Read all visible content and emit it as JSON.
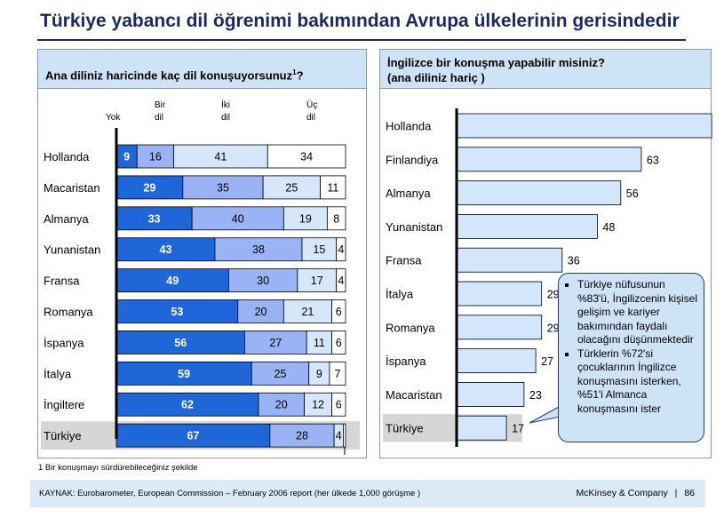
{
  "title": "Türkiye yabancı dil öğrenimi bakımından Avrupa ülkelerinin gerisindedir",
  "left_panel": {
    "title": "Ana diliniz haricinde kaç dil konuşuyorsunuz",
    "title_sup": "1",
    "title_suffix": "?",
    "col_headers": [
      {
        "line1": "",
        "line2": "Yok"
      },
      {
        "line1": "Bir",
        "line2": "dil"
      },
      {
        "line1": "İki",
        "line2": "dil"
      },
      {
        "line1": "Üç",
        "line2": "dil"
      }
    ],
    "bottom_note_label": "1"
  },
  "right_panel": {
    "title_line1": "İngilizce bir konuşma yapabilir misiniz?",
    "title_line2": "(ana diliniz hariç )"
  },
  "callout": {
    "bullets": [
      "Türkiye nüfusunun %83'ü, İngilizcenin kişisel gelişim ve kariyer bakımından faydalı olacağını düşünmektedir",
      "Türklerin %72'si çocuklarının İngilizce konuşmasını isterken, %51'i Almanca konuşmasını ister"
    ]
  },
  "footnote": "1 Bir konuşmayı sürdürebileceğiniz şekilde",
  "source": "KAYNAK: Eurobarometer, European Commission – February 2006 report (her ülkede 1,000 görüşme )",
  "brand": "McKinsey & Company",
  "page_number": "86",
  "colors": {
    "title": "#1a2a5c",
    "header_bg": "#cfe3f7",
    "seg_none": "#1f66d8",
    "seg_one": "#9ab3f5",
    "seg_two": "#d6e6fb",
    "seg_three": "#ffffff",
    "bar_right": "#d3e6fb",
    "highlight": "#d6d6d6"
  },
  "chart_data": [
    {
      "type": "bar",
      "orientation": "horizontal",
      "stacked": true,
      "percent": true,
      "title": "Ana diliniz haricinde kaç dil konuşuyorsunuz?",
      "categories": [
        "Hollanda",
        "Macaristan",
        "Almanya",
        "Yunanistan",
        "Fransa",
        "Romanya",
        "İspanya",
        "İtalya",
        "İngiltere",
        "Türkiye"
      ],
      "series": [
        {
          "name": "Yok",
          "values": [
            9,
            29,
            33,
            43,
            49,
            53,
            56,
            59,
            62,
            67
          ]
        },
        {
          "name": "Bir dil",
          "values": [
            16,
            35,
            40,
            38,
            30,
            20,
            27,
            25,
            20,
            28
          ]
        },
        {
          "name": "İki dil",
          "values": [
            41,
            25,
            19,
            15,
            17,
            21,
            11,
            9,
            12,
            4
          ]
        },
        {
          "name": "Üç dil",
          "values": [
            34,
            11,
            8,
            4,
            4,
            6,
            6,
            7,
            6,
            1
          ]
        }
      ],
      "highlight": "Türkiye",
      "legend": "top"
    },
    {
      "type": "bar",
      "orientation": "horizontal",
      "title": "İngilizce bir konuşma yapabilir misiniz? (ana diliniz hariç )",
      "categories": [
        "Hollanda",
        "Finlandiya",
        "Almanya",
        "Yunanistan",
        "Fransa",
        "İtalya",
        "Romanya",
        "İspanya",
        "Macaristan",
        "Türkiye"
      ],
      "values": [
        87,
        63,
        56,
        48,
        36,
        29,
        29,
        27,
        23,
        17
      ],
      "highlight": "Türkiye"
    }
  ]
}
